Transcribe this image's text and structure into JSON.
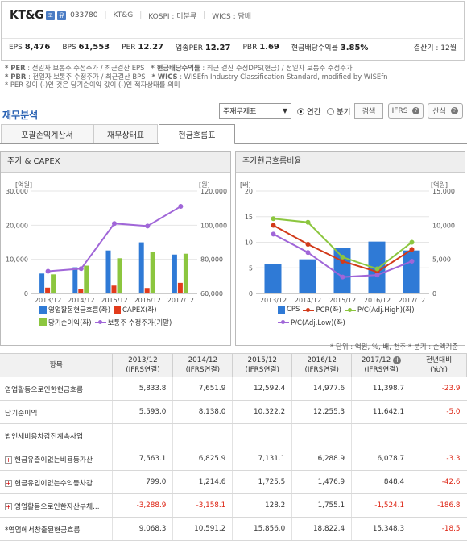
{
  "header": {
    "name": "KT&G",
    "icon1": "코",
    "icon2": "유",
    "code": "033780",
    "name2": "KT&G",
    "kospi": "KOSPI : 미분류",
    "wics": "WICS : 담배",
    "eps_label": "EPS",
    "eps": "8,476",
    "bps_label": "BPS",
    "bps": "61,553",
    "per_label": "PER",
    "per": "12.27",
    "iper_label": "업종PER",
    "iper": "12.27",
    "pbr_label": "PBR",
    "pbr": "1.69",
    "div_label": "현금배당수익률",
    "div": "3.85%",
    "fiscal": "결산기 : 12월"
  },
  "notes": [
    {
      "key": "* PER",
      "text": " : 전일자 보통주 수정주가 / 최근결산 EPS",
      "key2": "* 현금배당수익률",
      "text2": " : 최근 결산 수정DPS(현금) / 전일자 보통주 수정주가"
    },
    {
      "key": "* PBR",
      "text": " : 전일자 보통주 수정주가 / 최근결산 BPS",
      "key2": "* WICS",
      "text2": " : WISEfn Industry Classification Standard, modified by WISEfn"
    },
    {
      "key": "* PER 값이 (-)인 것은 당기순이익 값이 (-)인 적자상태를 의미",
      "text": "",
      "key2": "",
      "text2": ""
    }
  ],
  "section_title": "재무분석",
  "controls": {
    "select": "주재무제표",
    "annual": "연간",
    "quarter": "분기",
    "search": "검색",
    "ifrs": "IFRS",
    "help": "산식"
  },
  "tabs": [
    "포괄손익계산서",
    "재무상태표",
    "현금흐름표"
  ],
  "chart_left": {
    "title": "주가 & CAPEX",
    "y1_label": "[억원]",
    "y2_label": "[원]",
    "legend": [
      "영업활동현금흐름(좌)",
      "CAPEX(좌)",
      "당기순이익(좌)",
      "보통주 수정주가(기말)"
    ],
    "colors": [
      "#2f7ad6",
      "#e23b1c",
      "#8cc63f",
      "#a066d8"
    ]
  },
  "chart_right": {
    "title": "주가현금흐름비율",
    "y1_label": "[배]",
    "y2_label": "[억원]",
    "legend": [
      "CPS",
      "PCR(좌)",
      "P/C(Adj.High)(좌)",
      "P/C(Adj.Low)(좌)"
    ],
    "colors": [
      "#2f7ad6",
      "#d23a1a",
      "#8cc63f",
      "#a066d8"
    ]
  },
  "chart_data": [
    {
      "type": "bar",
      "title": "주가 & CAPEX",
      "categories": [
        "2013/12",
        "2014/12",
        "2015/12",
        "2016/12",
        "2017/12"
      ],
      "y_left": {
        "label": "[억원]",
        "ylim": [
          0,
          30000
        ],
        "ticks": [
          "0",
          "10,000",
          "20,000",
          "30,000"
        ]
      },
      "y_right": {
        "label": "[원]",
        "ylim": [
          60000,
          120000
        ],
        "ticks": [
          "60,000",
          "80,000",
          "100,000",
          "120,000"
        ]
      },
      "series": [
        {
          "name": "영업활동현금흐름(좌)",
          "type": "bar",
          "axis": "left",
          "values": [
            5833.8,
            7651.9,
            12592.4,
            14977.6,
            11398.7
          ]
        },
        {
          "name": "CAPEX(좌)",
          "type": "bar",
          "axis": "left",
          "values": [
            1700,
            1300,
            2300,
            1600,
            3100
          ]
        },
        {
          "name": "당기순이익(좌)",
          "type": "bar",
          "axis": "left",
          "values": [
            5593.0,
            8138.0,
            10322.2,
            12255.3,
            11642.1
          ]
        },
        {
          "name": "보통주 수정주가(기말)",
          "type": "line",
          "axis": "right",
          "values": [
            73000,
            74500,
            101000,
            99500,
            111000
          ]
        }
      ]
    },
    {
      "type": "bar",
      "title": "주가현금흐름비율",
      "categories": [
        "2013/12",
        "2014/12",
        "2015/12",
        "2016/12",
        "2017/12"
      ],
      "y_left": {
        "label": "[배]",
        "ylim": [
          0,
          20
        ],
        "ticks": [
          "0",
          "5",
          "10",
          "15",
          "20"
        ]
      },
      "y_right": {
        "label": "[억원]",
        "ylim": [
          0,
          15000
        ],
        "ticks": [
          "0",
          "5,000",
          "10,000",
          "15,000"
        ]
      },
      "series": [
        {
          "name": "CPS",
          "type": "bar",
          "axis": "right",
          "values": [
            4300,
            5000,
            6700,
            7600,
            6300
          ]
        },
        {
          "name": "PCR(좌)",
          "type": "line",
          "axis": "left",
          "values": [
            13.3,
            9.6,
            6.3,
            4.2,
            8.6
          ]
        },
        {
          "name": "P/C(Adj.High)(좌)",
          "type": "line",
          "axis": "left",
          "values": [
            14.6,
            13.9,
            7.1,
            4.8,
            10.0
          ]
        },
        {
          "name": "P/C(Adj.Low)(좌)",
          "type": "line",
          "axis": "left",
          "values": [
            11.6,
            8.0,
            3.2,
            3.6,
            6.3
          ]
        }
      ]
    }
  ],
  "unit_note": "* 단위 : 억원, %, 배, 천주   * 분기 : 순액기준",
  "table": {
    "head": {
      "item": "항목",
      "c1": "2013/12",
      "c2": "2014/12",
      "c3": "2015/12",
      "c4": "2016/12",
      "c5": "2017/12",
      "ifrs": "(IFRS연결)",
      "yoy1": "전년대비",
      "yoy2": "(YoY)"
    },
    "rows": [
      {
        "label": "영업활동으로인한현금흐름",
        "plus": false,
        "v": [
          "5,833.8",
          "7,651.9",
          "12,592.4",
          "14,977.6",
          "11,398.7",
          "-23.9"
        ],
        "neg": [
          false,
          false,
          false,
          false,
          false,
          true
        ]
      },
      {
        "label": "당기순이익",
        "plus": false,
        "v": [
          "5,593.0",
          "8,138.0",
          "10,322.2",
          "12,255.3",
          "11,642.1",
          "-5.0"
        ],
        "neg": [
          false,
          false,
          false,
          false,
          false,
          true
        ]
      },
      {
        "label": "법인세비용차감전계속사업",
        "plus": false,
        "v": [
          "",
          "",
          "",
          "",
          "",
          ""
        ],
        "neg": [
          false,
          false,
          false,
          false,
          false,
          false
        ]
      },
      {
        "label": "현금유출이없는비용등가산",
        "plus": true,
        "v": [
          "7,563.1",
          "6,825.9",
          "7,131.1",
          "6,288.9",
          "6,078.7",
          "-3.3"
        ],
        "neg": [
          false,
          false,
          false,
          false,
          false,
          true
        ]
      },
      {
        "label": "현금유입이없는수익등차감",
        "plus": true,
        "v": [
          "799.0",
          "1,214.6",
          "1,725.5",
          "1,476.9",
          "848.4",
          "-42.6"
        ],
        "neg": [
          false,
          false,
          false,
          false,
          false,
          true
        ]
      },
      {
        "label": "영업활동으로인한자산부채...",
        "plus": true,
        "v": [
          "-3,288.9",
          "-3,158.1",
          "128.2",
          "1,755.1",
          "-1,524.1",
          "-186.8"
        ],
        "neg": [
          true,
          true,
          false,
          false,
          true,
          true
        ]
      },
      {
        "label": "*영업에서창출된현금흐름",
        "plus": false,
        "v": [
          "9,068.3",
          "10,591.2",
          "15,856.0",
          "18,822.4",
          "15,348.3",
          "-18.5"
        ],
        "neg": [
          false,
          false,
          false,
          false,
          false,
          true
        ]
      }
    ]
  }
}
